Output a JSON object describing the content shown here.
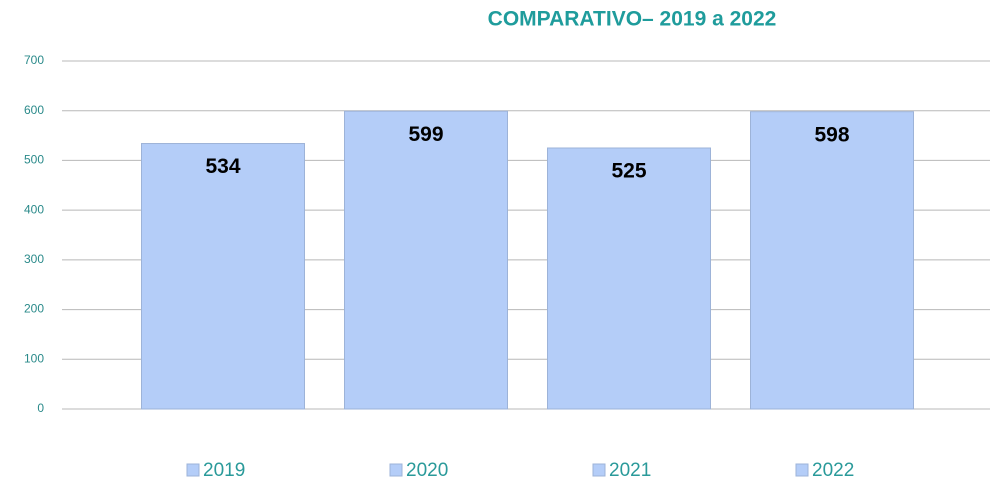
{
  "chart_data": {
    "type": "bar",
    "title": "COMPARATIVO– 2019 a 2022",
    "categories": [
      "2019",
      "2020",
      "2021",
      "2022"
    ],
    "values": [
      534,
      599,
      525,
      598
    ],
    "color": "#b4cdf8",
    "ylim": [
      0,
      700
    ],
    "yticks": [
      0,
      100,
      200,
      300,
      400,
      500,
      600,
      700
    ],
    "grid": true,
    "legend": "bottom"
  }
}
